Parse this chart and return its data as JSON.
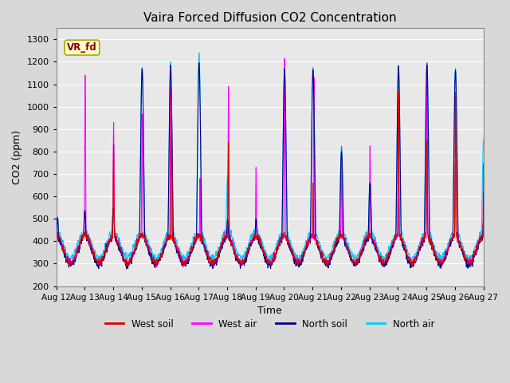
{
  "title": "Vaira Forced Diffusion CO2 Concentration",
  "xlabel": "Time",
  "ylabel": "CO2 (ppm)",
  "ylim": [
    200,
    1350
  ],
  "yticks": [
    200,
    300,
    400,
    500,
    600,
    700,
    800,
    900,
    1000,
    1100,
    1200,
    1300
  ],
  "xtick_labels": [
    "Aug 12",
    "Aug 13",
    "Aug 14",
    "Aug 15",
    "Aug 16",
    "Aug 17",
    "Aug 18",
    "Aug 19",
    "Aug 20",
    "Aug 21",
    "Aug 22",
    "Aug 23",
    "Aug 24",
    "Aug 25",
    "Aug 26",
    "Aug 27"
  ],
  "label_tag": "VR_fd",
  "legend_entries": [
    "West soil",
    "West air",
    "North soil",
    "North air"
  ],
  "line_colors": [
    "#dd0000",
    "#ff00ff",
    "#00008b",
    "#00ccff"
  ],
  "background_color": "#e8e8e8",
  "grid_color": "#ffffff",
  "n_days": 15,
  "pts_per_day": 96
}
